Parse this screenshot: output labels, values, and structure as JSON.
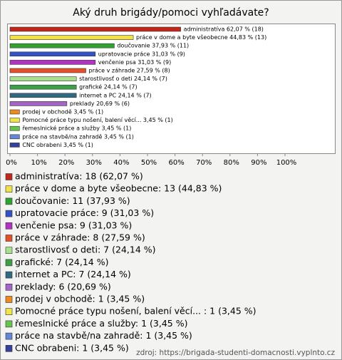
{
  "chart_data": {
    "type": "bar",
    "orientation": "horizontal",
    "title": "Aký druh brigády/pomoci vyhľadávate?",
    "categories": [
      "administratíva",
      "práce v dome a byte všeobecne",
      "doučovanie",
      "upratovacie práce",
      "venčenie psa",
      "práce v záhrade",
      "starostlivosť o deti",
      "grafické",
      "internet a PC",
      "preklady",
      "prodej v obchodě",
      "Pomocné práce typu nošení, balení věcí...",
      "řemeslnické práce a služby",
      "práce na stavbě/na zahradě",
      "CNC obrabeni"
    ],
    "values": [
      62.07,
      44.83,
      37.93,
      31.03,
      31.03,
      27.59,
      24.14,
      24.14,
      24.14,
      20.69,
      3.45,
      3.45,
      3.45,
      3.45,
      3.45
    ],
    "value_labels": [
      "administratíva 62,07 % (18)",
      "práce v dome a byte všeobecne 44,83 % (13)",
      "doučovanie 37,93 % (11)",
      "upratovacie práce 31,03 % (9)",
      "venčenie psa 31,03 % (9)",
      "práce v záhrade 27,59 % (8)",
      "starostlivosť o deti 24,14 % (7)",
      "grafické 24,14 % (7)",
      "internet a PC 24,14 % (7)",
      "preklady 20,69 % (6)",
      "prodej v obchodě 3,45 % (1)",
      "Pomocné práce typu nošení, balení věcí...  3,45 % (1)",
      "řemeslnické práce a služby 3,45 % (1)",
      "práce na stavbě/na zahradě 3,45 % (1)",
      "CNC obrabeni 3,45 % (1)"
    ],
    "legend_labels": [
      "administratíva: 18 (62,07 %)",
      "práce v dome a byte všeobecne: 13 (44,83 %)",
      "doučovanie: 11 (37,93 %)",
      "upratovacie práce: 9 (31,03 %)",
      "venčenie psa: 9 (31,03 %)",
      "práce v záhrade: 8 (27,59 %)",
      "starostlivosť o deti: 7 (24,14 %)",
      "grafické: 7 (24,14 %)",
      "internet a PC: 7 (24,14 %)",
      "preklady: 6 (20,69 %)",
      "prodej v obchodě: 1 (3,45 %)",
      "Pomocné práce typu nošení, balení věcí... : 1 (3,45 %)",
      "řemeslnické práce a služby: 1 (3,45 %)",
      "práce na stavbě/na zahradě: 1 (3,45 %)",
      "CNC obrabeni: 1 (3,45 %)"
    ],
    "colors": [
      "#c0281e",
      "#f2e24a",
      "#2ea32e",
      "#3352c8",
      "#b232c4",
      "#e2512a",
      "#a8e08c",
      "#3f9f48",
      "#2f6a80",
      "#a464c8",
      "#ee8a22",
      "#f0e448",
      "#66c44a",
      "#6486d4",
      "#34409c"
    ],
    "xlim": [
      0,
      100
    ],
    "xticks": [
      {
        "value": 0,
        "label": "0%"
      },
      {
        "value": 10,
        "label": "10%"
      },
      {
        "value": 20,
        "label": "20%"
      },
      {
        "value": 30,
        "label": "30%"
      },
      {
        "value": 40,
        "label": "40%"
      },
      {
        "value": 50,
        "label": "50%"
      },
      {
        "value": 60,
        "label": "60%"
      },
      {
        "value": 70,
        "label": "70%"
      },
      {
        "value": 80,
        "label": "80%"
      },
      {
        "value": 90,
        "label": "90%"
      },
      {
        "value": 100,
        "label": "100%"
      }
    ],
    "grid": false,
    "source": "zdroj: https://brigada-studenti-domacnosti.vyplnto.cz"
  }
}
